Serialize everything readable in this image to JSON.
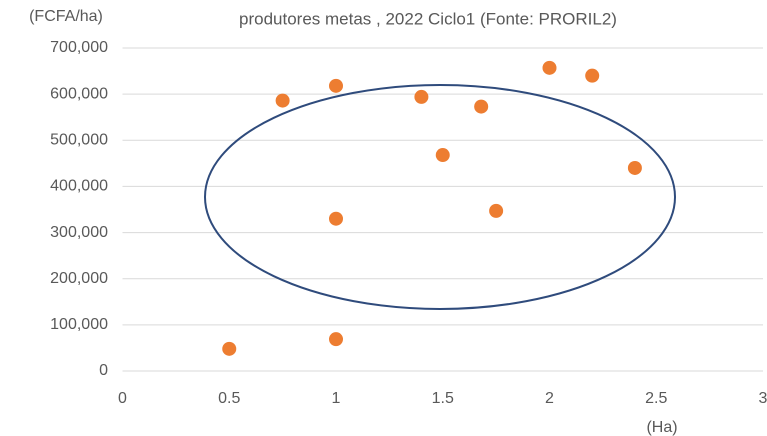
{
  "chart_data": {
    "type": "scatter",
    "title": "produtores metas , 2022 Ciclo1 (Fonte: PRORIL2)",
    "y_label": "(FCFA/ha)",
    "x_label": "(Ha)",
    "x": [
      0.5,
      0.75,
      1,
      1,
      1,
      1.4,
      1.5,
      1.68,
      1.75,
      2,
      2.2,
      2.4
    ],
    "values": [
      48000,
      586000,
      618000,
      330000,
      69000,
      594000,
      468000,
      573000,
      347000,
      657000,
      640000,
      440000
    ],
    "color": "#ed7d31",
    "xlim": [
      0,
      3
    ],
    "xticks": [
      0,
      0.5,
      1,
      1.5,
      2,
      2.5,
      3
    ],
    "ylim": [
      0,
      700000
    ],
    "yticks": [
      {
        "value": 0,
        "label": "0"
      },
      {
        "value": 100000,
        "label": "100,000"
      },
      {
        "value": 200000,
        "label": "200,000"
      },
      {
        "value": 300000,
        "label": "300,000"
      },
      {
        "value": 400000,
        "label": "400,000"
      },
      {
        "value": 500000,
        "label": "500,000"
      },
      {
        "value": 600000,
        "label": "600,000"
      },
      {
        "value": 700000,
        "label": "700,000"
      }
    ],
    "grid": true
  }
}
